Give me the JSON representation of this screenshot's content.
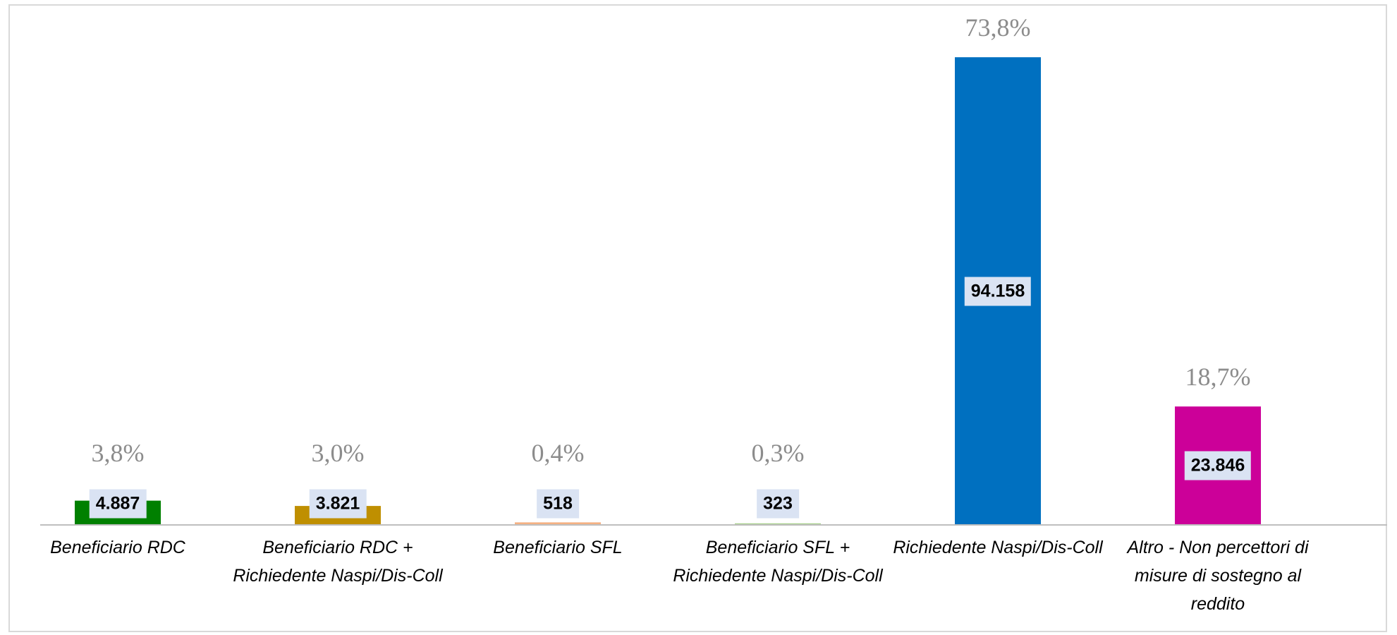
{
  "chart_data": {
    "type": "bar",
    "categories": [
      "Beneficiario RDC",
      "Beneficiario RDC + Richiedente Naspi/Dis-Coll",
      "Beneficiario SFL",
      "Beneficiario SFL + Richiedente Naspi/Dis-Coll",
      "Richiedente Naspi/Dis-Coll",
      "Altro - Non percettori di misure di sostegno al reddito"
    ],
    "values": [
      4887,
      3821,
      518,
      323,
      94158,
      23846
    ],
    "value_labels": [
      "4.887",
      "3.821",
      "518",
      "323",
      "94.158",
      "23.846"
    ],
    "annotations": [
      "3,8%",
      "3,0%",
      "0,4%",
      "0,3%",
      "73,8%",
      "18,7%"
    ],
    "colors": [
      "#008000",
      "#bf8f00",
      "#f4b183",
      "#a9d18e",
      "#0070c0",
      "#cc0099"
    ],
    "ylim": [
      0,
      100000
    ]
  }
}
